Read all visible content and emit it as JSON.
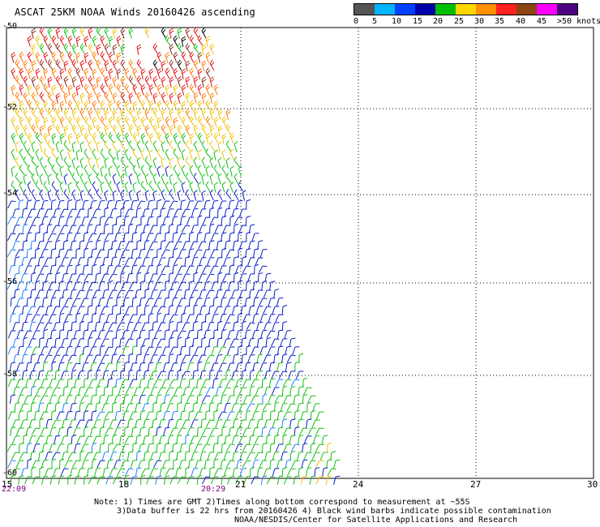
{
  "title": "ASCAT 25KM NOAA Winds 20160426 ascending",
  "legend": {
    "labels": [
      "0",
      "5",
      "10",
      "15",
      "20",
      "25",
      "30",
      "35",
      "40",
      "45",
      ">50 knots"
    ],
    "colors": [
      "#555555",
      "#00b4ff",
      "#0040ff",
      "#0000aa",
      "#00c000",
      "#ffd700",
      "#ff9000",
      "#ff2020",
      "#8b4513",
      "#ff00ff",
      "#4b0082"
    ]
  },
  "axes": {
    "lat_labels": [
      "-50",
      "-52",
      "-54",
      "-56",
      "-58",
      "-60"
    ],
    "lon_labels": [
      "15",
      "18",
      "21",
      "24",
      "27",
      "30"
    ],
    "time_labels": [
      "22:09",
      "20:29"
    ]
  },
  "notes": {
    "line1": "Note: 1) Times are GMT 2)Times along bottom correspond to measurement at ~55S",
    "line2": "3)Data buffer is 22 hrs from 20160426 4) Black wind barbs indicate possible contamination",
    "line3": "NOAA/NESDIS/Center for Satellite Applications and Research"
  },
  "colors": {
    "calm_blue": "#0a1ec8",
    "light_blue": "#2080ff",
    "green": "#10c010",
    "yellow": "#f0c000",
    "orange": "#ff7a00",
    "red": "#e01010",
    "brown": "#8b2a1a",
    "contaminated": "#000000"
  }
}
